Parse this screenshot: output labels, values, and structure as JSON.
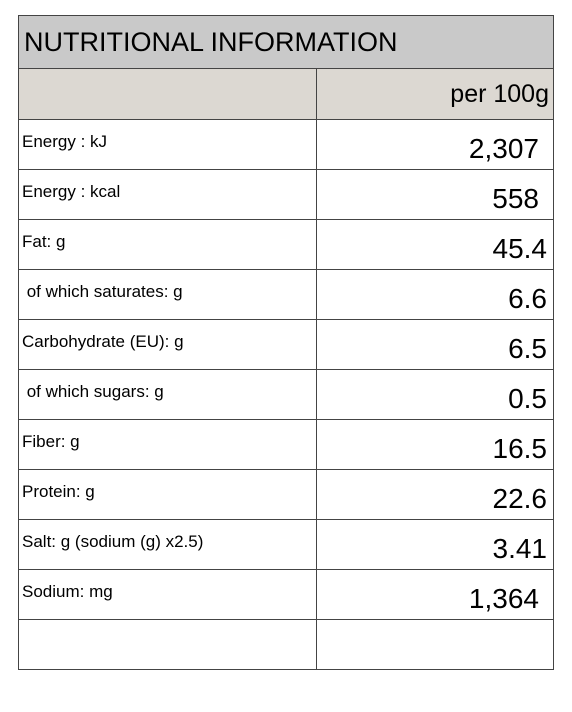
{
  "title": "NUTRITIONAL INFORMATION",
  "column_header": "per 100g",
  "rows": [
    {
      "label": "Energy : kJ",
      "value": "2,307"
    },
    {
      "label": "Energy : kcal",
      "value": "558"
    },
    {
      "label": "Fat: g",
      "value": "45.4"
    },
    {
      "label": " of which saturates: g",
      "value": "6.6"
    },
    {
      "label": "Carbohydrate (EU): g",
      "value": "6.5"
    },
    {
      "label": " of which sugars: g",
      "value": "0.5"
    },
    {
      "label": "Fiber: g",
      "value": "16.5"
    },
    {
      "label": "Protein: g",
      "value": "22.6"
    },
    {
      "label": "Salt: g (sodium (g) x2.5)",
      "value": "3.41"
    },
    {
      "label": "Sodium: mg",
      "value": "1,364"
    }
  ]
}
